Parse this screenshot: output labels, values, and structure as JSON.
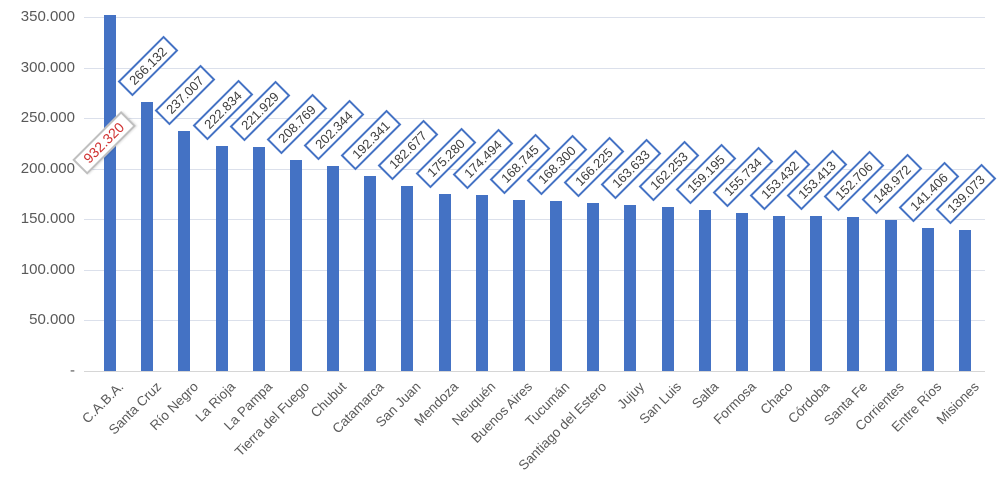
{
  "chart_data": {
    "type": "bar",
    "title": "",
    "categories": [
      "C.A.B.A.",
      "Santa Cruz",
      "Río Negro",
      "La Rioja",
      "La Pampa",
      "Tierra del Fuego",
      "Chubut",
      "Catamarca",
      "San Juan",
      "Mendoza",
      "Neuquén",
      "Buenos Aires",
      "Tucumán",
      "Santiago del Estero",
      "Jujuy",
      "San Luis",
      "Salta",
      "Formosa",
      "Chaco",
      "Córdoba",
      "Santa Fe",
      "Corrientes",
      "Entre Ríos",
      "Misiones"
    ],
    "values": [
      932320,
      266132,
      237007,
      222834,
      221929,
      208769,
      202344,
      192341,
      182677,
      175280,
      174494,
      168745,
      168300,
      166225,
      163633,
      162253,
      159195,
      155734,
      153432,
      153413,
      152706,
      148972,
      141406,
      139073
    ],
    "value_labels": [
      "932.320",
      "266.132",
      "237.007",
      "222.834",
      "221.929",
      "208.769",
      "202.344",
      "192.341",
      "182.677",
      "175.280",
      "174.494",
      "168.745",
      "168.300",
      "166.225",
      "163.633",
      "162.253",
      "159.195",
      "155.734",
      "153.432",
      "153.413",
      "152.706",
      "148.972",
      "141.406",
      "139.073"
    ],
    "alert_label_index": 0,
    "xlabel": "",
    "ylabel": "",
    "ylim": [
      0,
      350000
    ],
    "y_tick_step": 50000,
    "y_tick_labels_top_to_bottom": [
      "350.000",
      "300.000",
      "250.000",
      "200.000",
      "150.000",
      "100.000",
      "50.000",
      "-"
    ],
    "grid": true,
    "legend": false
  },
  "colors": {
    "bar": "#4472C4",
    "value_label_border": "#4472C4",
    "value_label_text": "#3d3d3d",
    "alert_label_text": "#d03030",
    "alert_label_border": "#bfbfbf",
    "axis_text": "#595959",
    "gridline": "#dbe0eb",
    "baseline": "#d6d6d6",
    "background": "#ffffff"
  }
}
